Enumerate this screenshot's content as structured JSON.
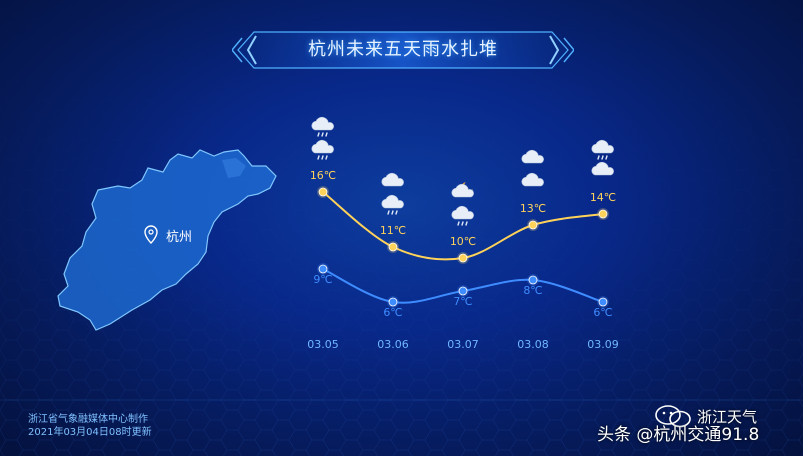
{
  "title": "杭州未来五天雨水扎堆",
  "map": {
    "city_label": "杭州",
    "city_icon": "location-pin-icon"
  },
  "chart_data": {
    "type": "line",
    "categories": [
      "03.05",
      "03.06",
      "03.07",
      "03.08",
      "03.09"
    ],
    "series": [
      {
        "values": [
          16,
          11,
          10,
          13,
          14
        ],
        "labels": [
          "16℃",
          "11℃",
          "10℃",
          "13℃",
          "14℃"
        ],
        "color": "#ffd25a"
      },
      {
        "values": [
          9,
          6,
          7,
          8,
          6
        ],
        "labels": [
          "9℃",
          "6℃",
          "7℃",
          "8℃",
          "6℃"
        ],
        "color": "#3f8cff"
      }
    ],
    "weather_icons": [
      [
        "rain-cloud-icon",
        "rain-cloud-icon"
      ],
      [
        "cloud-icon",
        "rain-cloud-icon"
      ],
      [
        "moon-cloud-icon",
        "rain-cloud-icon"
      ],
      [
        "cloud-icon",
        "cloud-icon"
      ],
      [
        "rain-cloud-icon",
        "cloud-icon"
      ]
    ]
  },
  "footer": {
    "line1": "浙江省气象融媒体中心制作",
    "line2": "2021年03月04日08时更新"
  },
  "watermark": "头条 @杭州交通91.8",
  "brand": "浙江天气",
  "colors": {
    "accent": "#3aa0ff",
    "high": "#ffd25a",
    "low": "#3f8cff",
    "map_fill": "#1f6ed6"
  }
}
